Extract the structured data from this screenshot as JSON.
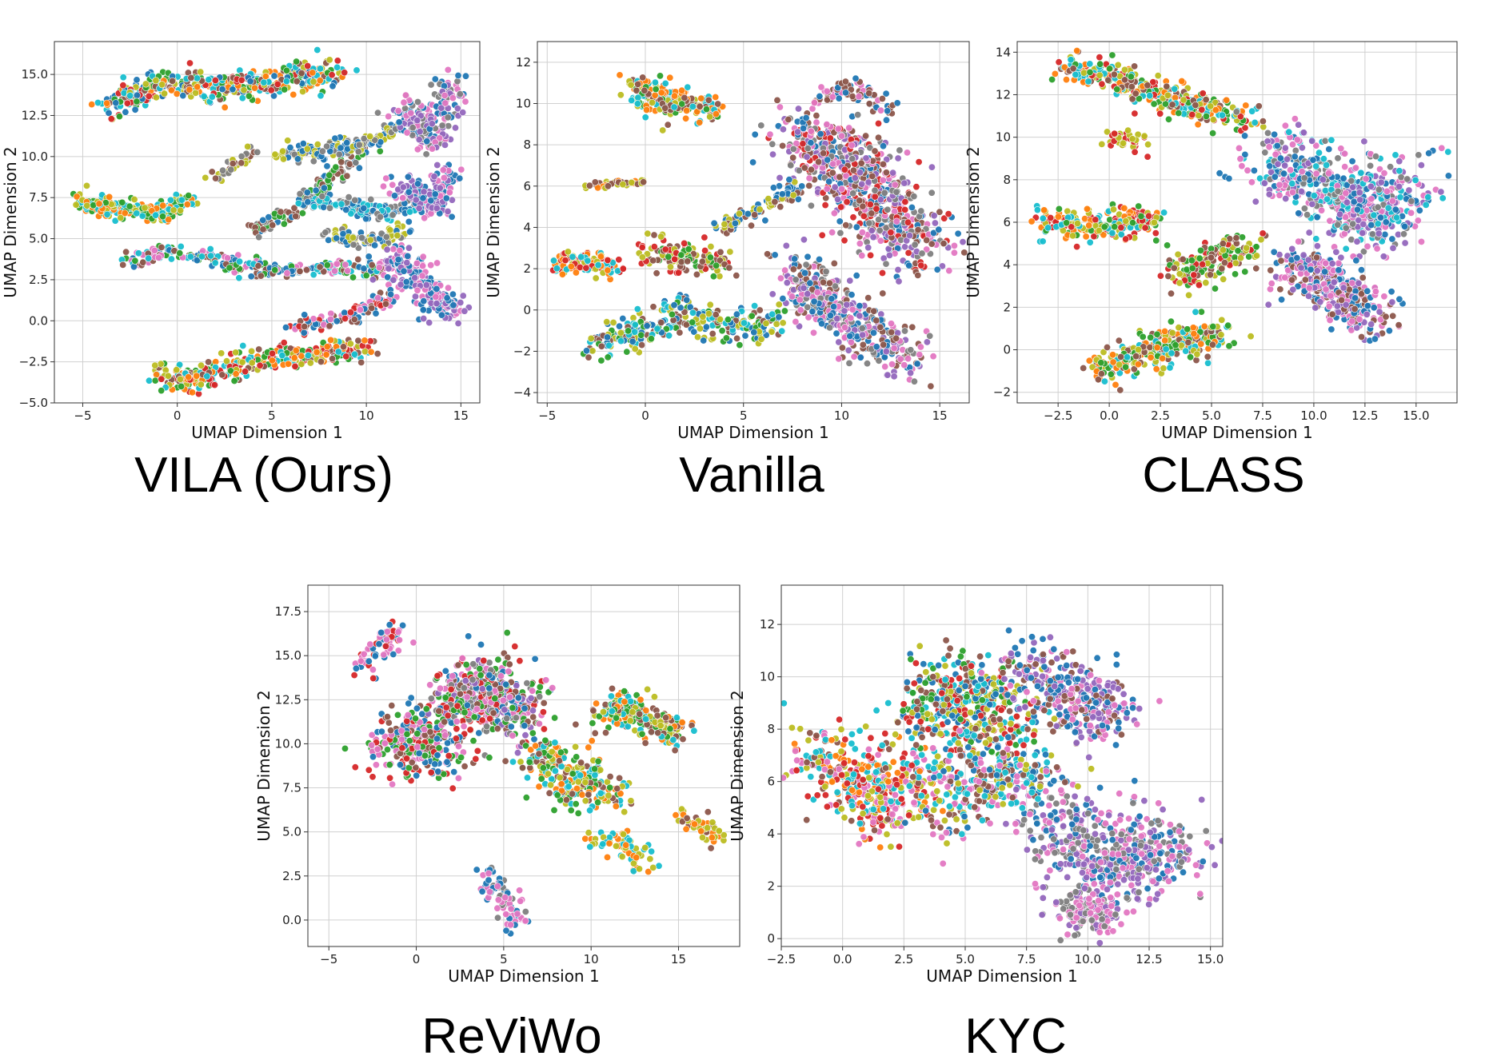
{
  "palette": [
    "#1f77b4",
    "#ff7f0e",
    "#2ca02c",
    "#d62728",
    "#9467bd",
    "#8c564b",
    "#e377c2",
    "#7f7f7f",
    "#bcbd22",
    "#17becf"
  ],
  "chart_data": [
    {
      "type": "scatter",
      "title": "VILA (Ours)",
      "xlabel": "UMAP Dimension 1",
      "ylabel": "UMAP Dimension 2",
      "xlim": [
        -6.5,
        16
      ],
      "ylim": [
        -5,
        17
      ],
      "xticks": [
        -5,
        0,
        5,
        10,
        15
      ],
      "yticks": [
        -5.0,
        -2.5,
        0.0,
        2.5,
        5.0,
        7.5,
        10.0,
        12.5,
        15.0
      ],
      "tick_decimals_x": 0,
      "tick_decimals_y": 1,
      "grid": true,
      "clusters": [
        {
          "x": [
            -3.5,
            -1,
            2,
            5,
            8.5
          ],
          "y": [
            13,
            14.5,
            14.2,
            14.5,
            15.2
          ],
          "spread": 0.55,
          "n": 420,
          "colors": [
            0,
            1,
            2,
            3,
            8,
            9,
            5
          ]
        },
        {
          "x": [
            -5.2,
            -3,
            -1,
            0.8
          ],
          "y": [
            7.3,
            6.8,
            6.6,
            7.3
          ],
          "spread": 0.4,
          "n": 220,
          "colors": [
            1,
            8,
            9,
            2
          ]
        },
        {
          "x": [
            -2.5,
            -0.5,
            2,
            5,
            8,
            11
          ],
          "y": [
            3.5,
            4.3,
            3.7,
            3.0,
            3.2,
            3.1
          ],
          "spread": 0.3,
          "n": 260,
          "colors": [
            2,
            5,
            9,
            6,
            0
          ]
        },
        {
          "x": [
            -1,
            1,
            3,
            5.5,
            8,
            10
          ],
          "y": [
            -3.3,
            -3.5,
            -2.8,
            -2.2,
            -2.0,
            -1.6
          ],
          "spread": 0.45,
          "n": 330,
          "colors": [
            1,
            8,
            9,
            3,
            5,
            2
          ]
        },
        {
          "x": [
            4,
            6,
            8,
            10
          ],
          "y": [
            5.5,
            6.5,
            8.5,
            10.5
          ],
          "spread": 0.3,
          "n": 130,
          "colors": [
            0,
            7,
            5,
            2
          ]
        },
        {
          "x": [
            5.5,
            7.5,
            10,
            12.5
          ],
          "y": [
            10.2,
            10.4,
            10.8,
            12.3
          ],
          "spread": 0.35,
          "n": 150,
          "colors": [
            0,
            7,
            8
          ]
        },
        {
          "x": [
            7,
            9,
            11,
            13
          ],
          "y": [
            7.3,
            7.0,
            6.5,
            7.2
          ],
          "spread": 0.35,
          "n": 150,
          "colors": [
            0,
            7,
            9
          ]
        },
        {
          "x": [
            8,
            10,
            12
          ],
          "y": [
            5.2,
            4.8,
            5.4
          ],
          "spread": 0.3,
          "n": 90,
          "colors": [
            0,
            8,
            7
          ]
        },
        {
          "x": [
            12,
            13.5,
            14.5
          ],
          "y": [
            13,
            11,
            14.5
          ],
          "spread": 0.6,
          "n": 200,
          "colors": [
            4,
            7,
            0,
            6
          ]
        },
        {
          "x": [
            11.5,
            13,
            14.5
          ],
          "y": [
            4,
            2,
            0.5
          ],
          "spread": 0.55,
          "n": 220,
          "colors": [
            6,
            4,
            0
          ]
        },
        {
          "x": [
            6,
            9,
            11.5
          ],
          "y": [
            -0.5,
            0.2,
            1.5
          ],
          "spread": 0.3,
          "n": 110,
          "colors": [
            5,
            6,
            0,
            3
          ]
        },
        {
          "x": [
            12,
            13.5,
            14.5
          ],
          "y": [
            8.5,
            6.5,
            9.5
          ],
          "spread": 0.5,
          "n": 150,
          "colors": [
            0,
            4,
            6
          ]
        },
        {
          "x": [
            2,
            3,
            4
          ],
          "y": [
            8.5,
            9.5,
            10.5
          ],
          "spread": 0.25,
          "n": 40,
          "colors": [
            5,
            8,
            7
          ]
        }
      ]
    },
    {
      "type": "scatter",
      "title": "Vanilla",
      "xlabel": "UMAP Dimension 1",
      "ylabel": "UMAP Dimension 2",
      "xlim": [
        -5.5,
        16.5
      ],
      "ylim": [
        -4.5,
        13
      ],
      "xticks": [
        -5,
        0,
        5,
        10,
        15
      ],
      "yticks": [
        -4,
        -2,
        0,
        2,
        4,
        6,
        8,
        10,
        12
      ],
      "tick_decimals_x": 0,
      "tick_decimals_y": 0,
      "grid": true,
      "clusters": [
        {
          "x": [
            -0.5,
            0.5,
            2,
            3.5
          ],
          "y": [
            10.8,
            10.2,
            10.0,
            9.8
          ],
          "spread": 0.45,
          "n": 230,
          "colors": [
            9,
            1,
            8,
            2,
            5
          ]
        },
        {
          "x": [
            -3,
            -1.5,
            0
          ],
          "y": [
            6.0,
            6.1,
            6.2
          ],
          "spread": 0.1,
          "n": 40,
          "colors": [
            1,
            5,
            8
          ]
        },
        {
          "x": [
            -4.5,
            -3,
            -1.5
          ],
          "y": [
            2.2,
            2.3,
            2.1
          ],
          "spread": 0.3,
          "n": 120,
          "colors": [
            1,
            8,
            9,
            3
          ]
        },
        {
          "x": [
            -2.5,
            -0.5,
            2,
            4,
            6.5
          ],
          "y": [
            -1.8,
            -1.0,
            -0.2,
            -0.8,
            -0.6
          ],
          "spread": 0.55,
          "n": 300,
          "colors": [
            2,
            8,
            9,
            5,
            0
          ]
        },
        {
          "x": [
            0,
            2,
            4
          ],
          "y": [
            3,
            2.5,
            2.2
          ],
          "spread": 0.5,
          "n": 130,
          "colors": [
            5,
            2,
            8,
            3
          ]
        },
        {
          "x": [
            8,
            10,
            12,
            14
          ],
          "y": [
            8.5,
            7,
            5,
            3
          ],
          "spread": 1.2,
          "n": 700,
          "colors": [
            6,
            0,
            4,
            7,
            5,
            3
          ]
        },
        {
          "x": [
            7.5,
            9,
            11,
            13.5
          ],
          "y": [
            2,
            0.5,
            -1,
            -2.5
          ],
          "spread": 0.8,
          "n": 400,
          "colors": [
            0,
            6,
            7,
            5,
            4
          ]
        },
        {
          "x": [
            4,
            6,
            8
          ],
          "y": [
            4.0,
            5.0,
            6.0
          ],
          "spread": 0.3,
          "n": 80,
          "colors": [
            0,
            5,
            8
          ]
        },
        {
          "x": [
            9,
            11,
            12.5
          ],
          "y": [
            10.5,
            10.8,
            9.5
          ],
          "spread": 0.3,
          "n": 70,
          "colors": [
            0,
            5,
            6
          ]
        }
      ]
    },
    {
      "type": "scatter",
      "title": "CLASS",
      "xlabel": "UMAP Dimension 1",
      "ylabel": "UMAP Dimension 2",
      "xlim": [
        -4.5,
        17
      ],
      "ylim": [
        -2.5,
        14.5
      ],
      "xticks": [
        -2.5,
        0.0,
        2.5,
        5.0,
        7.5,
        10.0,
        12.5,
        15.0
      ],
      "yticks": [
        -2,
        0,
        2,
        4,
        6,
        8,
        10,
        12,
        14
      ],
      "tick_decimals_x": 1,
      "tick_decimals_y": 0,
      "grid": true,
      "clusters": [
        {
          "x": [
            -2,
            0,
            2,
            4,
            7
          ],
          "y": [
            13.2,
            13.0,
            12.2,
            11.5,
            10.8
          ],
          "spread": 0.45,
          "n": 330,
          "colors": [
            8,
            1,
            3,
            2,
            5,
            9
          ]
        },
        {
          "x": [
            -3.5,
            -1.5,
            0.5,
            2
          ],
          "y": [
            6.3,
            5.8,
            5.9,
            6.2
          ],
          "spread": 0.45,
          "n": 200,
          "colors": [
            9,
            1,
            8,
            2,
            3
          ]
        },
        {
          "x": [
            -0.5,
            1.5,
            3.5,
            5.5
          ],
          "y": [
            -0.8,
            -0.2,
            0.4,
            0.7
          ],
          "spread": 0.5,
          "n": 300,
          "colors": [
            9,
            1,
            8,
            2,
            5
          ]
        },
        {
          "x": [
            8,
            10.5,
            12.5,
            14.5
          ],
          "y": [
            9,
            8,
            6,
            8
          ],
          "spread": 1.1,
          "n": 600,
          "colors": [
            0,
            6,
            4,
            7,
            9
          ]
        },
        {
          "x": [
            9,
            11,
            13
          ],
          "y": [
            4,
            3,
            1.5
          ],
          "spread": 0.8,
          "n": 350,
          "colors": [
            6,
            4,
            0,
            5
          ]
        },
        {
          "x": [
            3,
            5,
            7
          ],
          "y": [
            3.5,
            4,
            5
          ],
          "spread": 0.6,
          "n": 150,
          "colors": [
            2,
            5,
            8,
            3
          ]
        },
        {
          "x": [
            0,
            1,
            2
          ],
          "y": [
            9.8,
            10,
            9.5
          ],
          "spread": 0.25,
          "n": 40,
          "colors": [
            3,
            8
          ]
        }
      ]
    },
    {
      "type": "scatter",
      "title": "ReViWo",
      "xlabel": "UMAP Dimension 1",
      "ylabel": "UMAP Dimension 2",
      "xlim": [
        -6.2,
        18.5
      ],
      "ylim": [
        -1.5,
        19
      ],
      "xticks": [
        -5,
        0,
        5,
        10,
        15
      ],
      "yticks": [
        0.0,
        2.5,
        5.0,
        7.5,
        10.0,
        12.5,
        15.0,
        17.5
      ],
      "tick_decimals_x": 0,
      "tick_decimals_y": 1,
      "grid": true,
      "clusters": [
        {
          "x": [
            2,
            4,
            6
          ],
          "y": [
            12,
            13.5,
            11
          ],
          "spread": 1.1,
          "n": 500,
          "colors": [
            6,
            5,
            0,
            2,
            4,
            3,
            7
          ]
        },
        {
          "x": [
            -2,
            0,
            2
          ],
          "y": [
            9.5,
            10.5,
            9
          ],
          "spread": 1.0,
          "n": 260,
          "colors": [
            0,
            5,
            6,
            3,
            2
          ]
        },
        {
          "x": [
            7,
            9,
            11
          ],
          "y": [
            9.5,
            8,
            7
          ],
          "spread": 0.9,
          "n": 230,
          "colors": [
            2,
            1,
            8,
            9,
            5
          ]
        },
        {
          "x": [
            11,
            13,
            15
          ],
          "y": [
            12,
            11.5,
            10.5
          ],
          "spread": 0.7,
          "n": 200,
          "colors": [
            9,
            1,
            2,
            5,
            8
          ]
        },
        {
          "x": [
            -3,
            -2,
            -1
          ],
          "y": [
            14.5,
            15.5,
            16.5
          ],
          "spread": 0.5,
          "n": 70,
          "colors": [
            6,
            0,
            3
          ]
        },
        {
          "x": [
            4,
            5,
            6
          ],
          "y": [
            3,
            1,
            -0.3
          ],
          "spread": 0.5,
          "n": 80,
          "colors": [
            6,
            0,
            7
          ]
        },
        {
          "x": [
            10,
            12,
            13
          ],
          "y": [
            4.5,
            4.5,
            3
          ],
          "spread": 0.4,
          "n": 70,
          "colors": [
            8,
            1,
            9
          ]
        },
        {
          "x": [
            15,
            16.5,
            17
          ],
          "y": [
            6,
            5.3,
            4.8
          ],
          "spread": 0.4,
          "n": 50,
          "colors": [
            8,
            1,
            5
          ]
        }
      ]
    },
    {
      "type": "scatter",
      "title": "KYC",
      "xlabel": "UMAP Dimension 1",
      "ylabel": "UMAP Dimension 2",
      "xlim": [
        -2.5,
        15.5
      ],
      "ylim": [
        -0.3,
        13.5
      ],
      "xticks": [
        -2.5,
        0.0,
        2.5,
        5.0,
        7.5,
        10.0,
        12.5,
        15.0
      ],
      "yticks": [
        0,
        2,
        4,
        6,
        8,
        10,
        12
      ],
      "tick_decimals_x": 1,
      "tick_decimals_y": 0,
      "grid": true,
      "clusters": [
        {
          "x": [
            -1,
            0.5,
            2,
            3.5
          ],
          "y": [
            7.5,
            6,
            5,
            6.5
          ],
          "spread": 0.9,
          "n": 450,
          "colors": [
            1,
            8,
            9,
            3,
            5,
            6
          ]
        },
        {
          "x": [
            3.5,
            5,
            7
          ],
          "y": [
            8.5,
            9.5,
            8
          ],
          "spread": 1.0,
          "n": 450,
          "colors": [
            2,
            5,
            3,
            8,
            0,
            9
          ]
        },
        {
          "x": [
            7.5,
            9.5,
            11
          ],
          "y": [
            10.5,
            9,
            8.5
          ],
          "spread": 0.8,
          "n": 320,
          "colors": [
            6,
            0,
            5,
            4
          ]
        },
        {
          "x": [
            8,
            10,
            12,
            13.5
          ],
          "y": [
            5,
            3.5,
            2.5,
            4
          ],
          "spread": 1.0,
          "n": 500,
          "colors": [
            0,
            6,
            4,
            7
          ]
        },
        {
          "x": [
            9,
            10,
            11
          ],
          "y": [
            1.5,
            0.8,
            1.2
          ],
          "spread": 0.5,
          "n": 150,
          "colors": [
            4,
            7,
            6
          ]
        },
        {
          "x": [
            4,
            6,
            8
          ],
          "y": [
            4.5,
            6.5,
            6
          ],
          "spread": 0.8,
          "n": 250,
          "colors": [
            9,
            8,
            5,
            6,
            0
          ]
        }
      ]
    }
  ]
}
